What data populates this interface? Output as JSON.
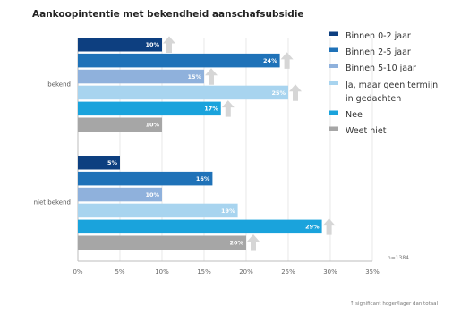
{
  "chart_data": {
    "type": "bar",
    "orientation": "horizontal",
    "title": "Aankoopintentie met bekendheid aanschafsubsidie",
    "categories": [
      "bekend",
      "niet bekend"
    ],
    "series": [
      {
        "name": "Binnen 0-2 jaar",
        "color": "#0d3f80",
        "values": [
          10,
          5
        ],
        "labels": [
          "10%",
          "5%"
        ],
        "significant_higher": [
          true,
          false
        ]
      },
      {
        "name": "Binnen 2-5 jaar",
        "color": "#1f72b8",
        "values": [
          24,
          16
        ],
        "labels": [
          "24%",
          "16%"
        ],
        "significant_higher": [
          true,
          false
        ]
      },
      {
        "name": "Binnen 5-10 jaar",
        "color": "#8fb1dc",
        "values": [
          15,
          10
        ],
        "labels": [
          "15%",
          "10%"
        ],
        "significant_higher": [
          true,
          false
        ]
      },
      {
        "name": "Ja, maar geen termijn in gedachten",
        "color": "#a8d4ef",
        "values": [
          25,
          19
        ],
        "labels": [
          "25%",
          "19%"
        ],
        "significant_higher": [
          true,
          false
        ]
      },
      {
        "name": "Nee",
        "color": "#1aa3dc",
        "values": [
          17,
          29
        ],
        "labels": [
          "17%",
          "29%"
        ],
        "significant_higher": [
          true,
          true
        ]
      },
      {
        "name": "Weet niet",
        "color": "#a6a6a6",
        "values": [
          10,
          20
        ],
        "labels": [
          "10%",
          "20%"
        ],
        "significant_higher": [
          false,
          true
        ]
      }
    ],
    "xlim": [
      0,
      35
    ],
    "xticks": [
      "0%",
      "5%",
      "10%",
      "15%",
      "20%",
      "25%",
      "30%",
      "35%"
    ],
    "grid": true,
    "legend_position": "right",
    "legend": [
      "Binnen 0-2 jaar",
      "Binnen 2-5 jaar",
      "Binnen 5-10 jaar",
      "Ja, maar geen termijn",
      "in gedachten",
      "Nee",
      "Weet niet"
    ],
    "sample_size": "n=1384",
    "footnote": "↑ significant hoger/lager dan totaal"
  }
}
